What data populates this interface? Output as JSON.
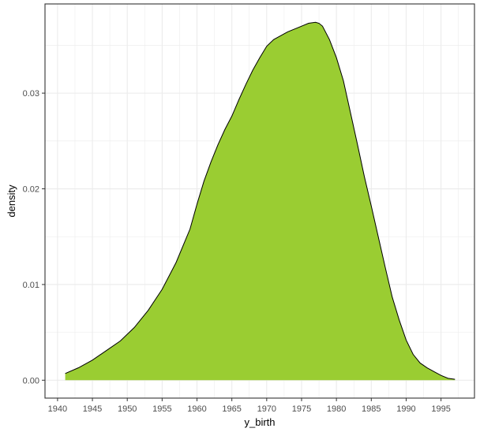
{
  "chart_data": {
    "type": "area",
    "title": "",
    "xlabel": "y_birth",
    "ylabel": "density",
    "xlim": [
      1938.2,
      1999.8
    ],
    "ylim": [
      -0.00187,
      0.03932
    ],
    "x_ticks": [
      1940,
      1945,
      1950,
      1955,
      1960,
      1965,
      1970,
      1975,
      1980,
      1985,
      1990,
      1995
    ],
    "x_minor_ticks": [
      1942.5,
      1947.5,
      1952.5,
      1957.5,
      1962.5,
      1967.5,
      1972.5,
      1977.5,
      1982.5,
      1987.5,
      1992.5,
      1997.5
    ],
    "y_ticks": [
      0.0,
      0.01,
      0.02,
      0.03
    ],
    "y_tick_labels": [
      "0.00",
      "0.01",
      "0.02",
      "0.03"
    ],
    "y_minor_ticks": [
      0.005,
      0.015,
      0.025,
      0.035
    ],
    "grid": true,
    "fill_color": "#9ACD32",
    "line_color": "#000000",
    "panel_border_color": "#333333",
    "grid_color": "#ebebeb",
    "series": [
      {
        "x": [
          1941.1,
          1943,
          1945,
          1947,
          1949,
          1951,
          1953,
          1955,
          1957,
          1959,
          1960,
          1961,
          1962,
          1963,
          1964,
          1965,
          1966,
          1967,
          1968,
          1969,
          1970,
          1971,
          1972,
          1973,
          1974,
          1975,
          1976,
          1977,
          1977.5,
          1978,
          1979,
          1980,
          1981,
          1982,
          1983,
          1984,
          1985,
          1986,
          1987,
          1988,
          1989,
          1990,
          1991,
          1992,
          1993,
          1994,
          1995,
          1996,
          1997
        ],
        "y": [
          0.0007,
          0.0013,
          0.0021,
          0.0031,
          0.0041,
          0.0055,
          0.0073,
          0.0095,
          0.0123,
          0.0158,
          0.0184,
          0.0208,
          0.0228,
          0.0246,
          0.0262,
          0.0276,
          0.0293,
          0.0309,
          0.0324,
          0.0337,
          0.0349,
          0.0356,
          0.036,
          0.0364,
          0.0367,
          0.037,
          0.0373,
          0.0374,
          0.0373,
          0.037,
          0.0356,
          0.0337,
          0.0313,
          0.028,
          0.0247,
          0.0213,
          0.0182,
          0.015,
          0.0118,
          0.0087,
          0.0063,
          0.0042,
          0.0027,
          0.0018,
          0.0013,
          0.0009,
          0.0005,
          0.0002,
          0.0001
        ]
      }
    ]
  }
}
